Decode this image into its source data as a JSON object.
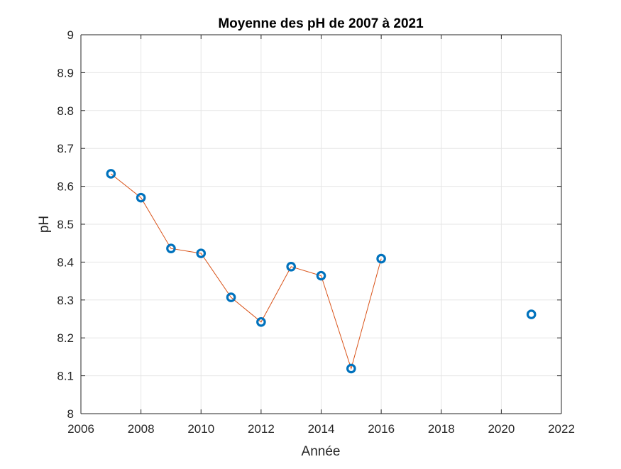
{
  "chart_data": {
    "type": "line",
    "title": "Moyenne des pH de 2007 à 2021",
    "xlabel": "Année",
    "ylabel": "pH",
    "xlim": [
      2006,
      2022
    ],
    "ylim": [
      8,
      9
    ],
    "xticks": [
      2006,
      2008,
      2010,
      2012,
      2014,
      2016,
      2018,
      2020,
      2022
    ],
    "yticks": [
      8,
      8.1,
      8.2,
      8.3,
      8.4,
      8.5,
      8.6,
      8.7,
      8.8,
      8.9,
      9
    ],
    "xtick_labels": [
      "2006",
      "2008",
      "2010",
      "2012",
      "2014",
      "2016",
      "2018",
      "2020",
      "2022"
    ],
    "ytick_labels": [
      "8",
      "8.1",
      "8.2",
      "8.3",
      "8.4",
      "8.5",
      "8.6",
      "8.7",
      "8.8",
      "8.9",
      "9"
    ],
    "grid": true,
    "series": [
      {
        "style": "line",
        "color": "#D95319",
        "x": [
          2007,
          2008,
          2009,
          2010,
          2011,
          2012,
          2013,
          2014,
          2015,
          2016
        ],
        "y": [
          8.633,
          8.57,
          8.436,
          8.423,
          8.307,
          8.242,
          8.388,
          8.364,
          8.119,
          8.409
        ]
      },
      {
        "style": "markers",
        "marker": "circle",
        "color": "#0072BD",
        "x": [
          2007,
          2008,
          2009,
          2010,
          2011,
          2012,
          2013,
          2014,
          2015,
          2016,
          2021
        ],
        "y": [
          8.633,
          8.57,
          8.436,
          8.423,
          8.307,
          8.242,
          8.388,
          8.364,
          8.119,
          8.409,
          8.262
        ]
      }
    ]
  }
}
